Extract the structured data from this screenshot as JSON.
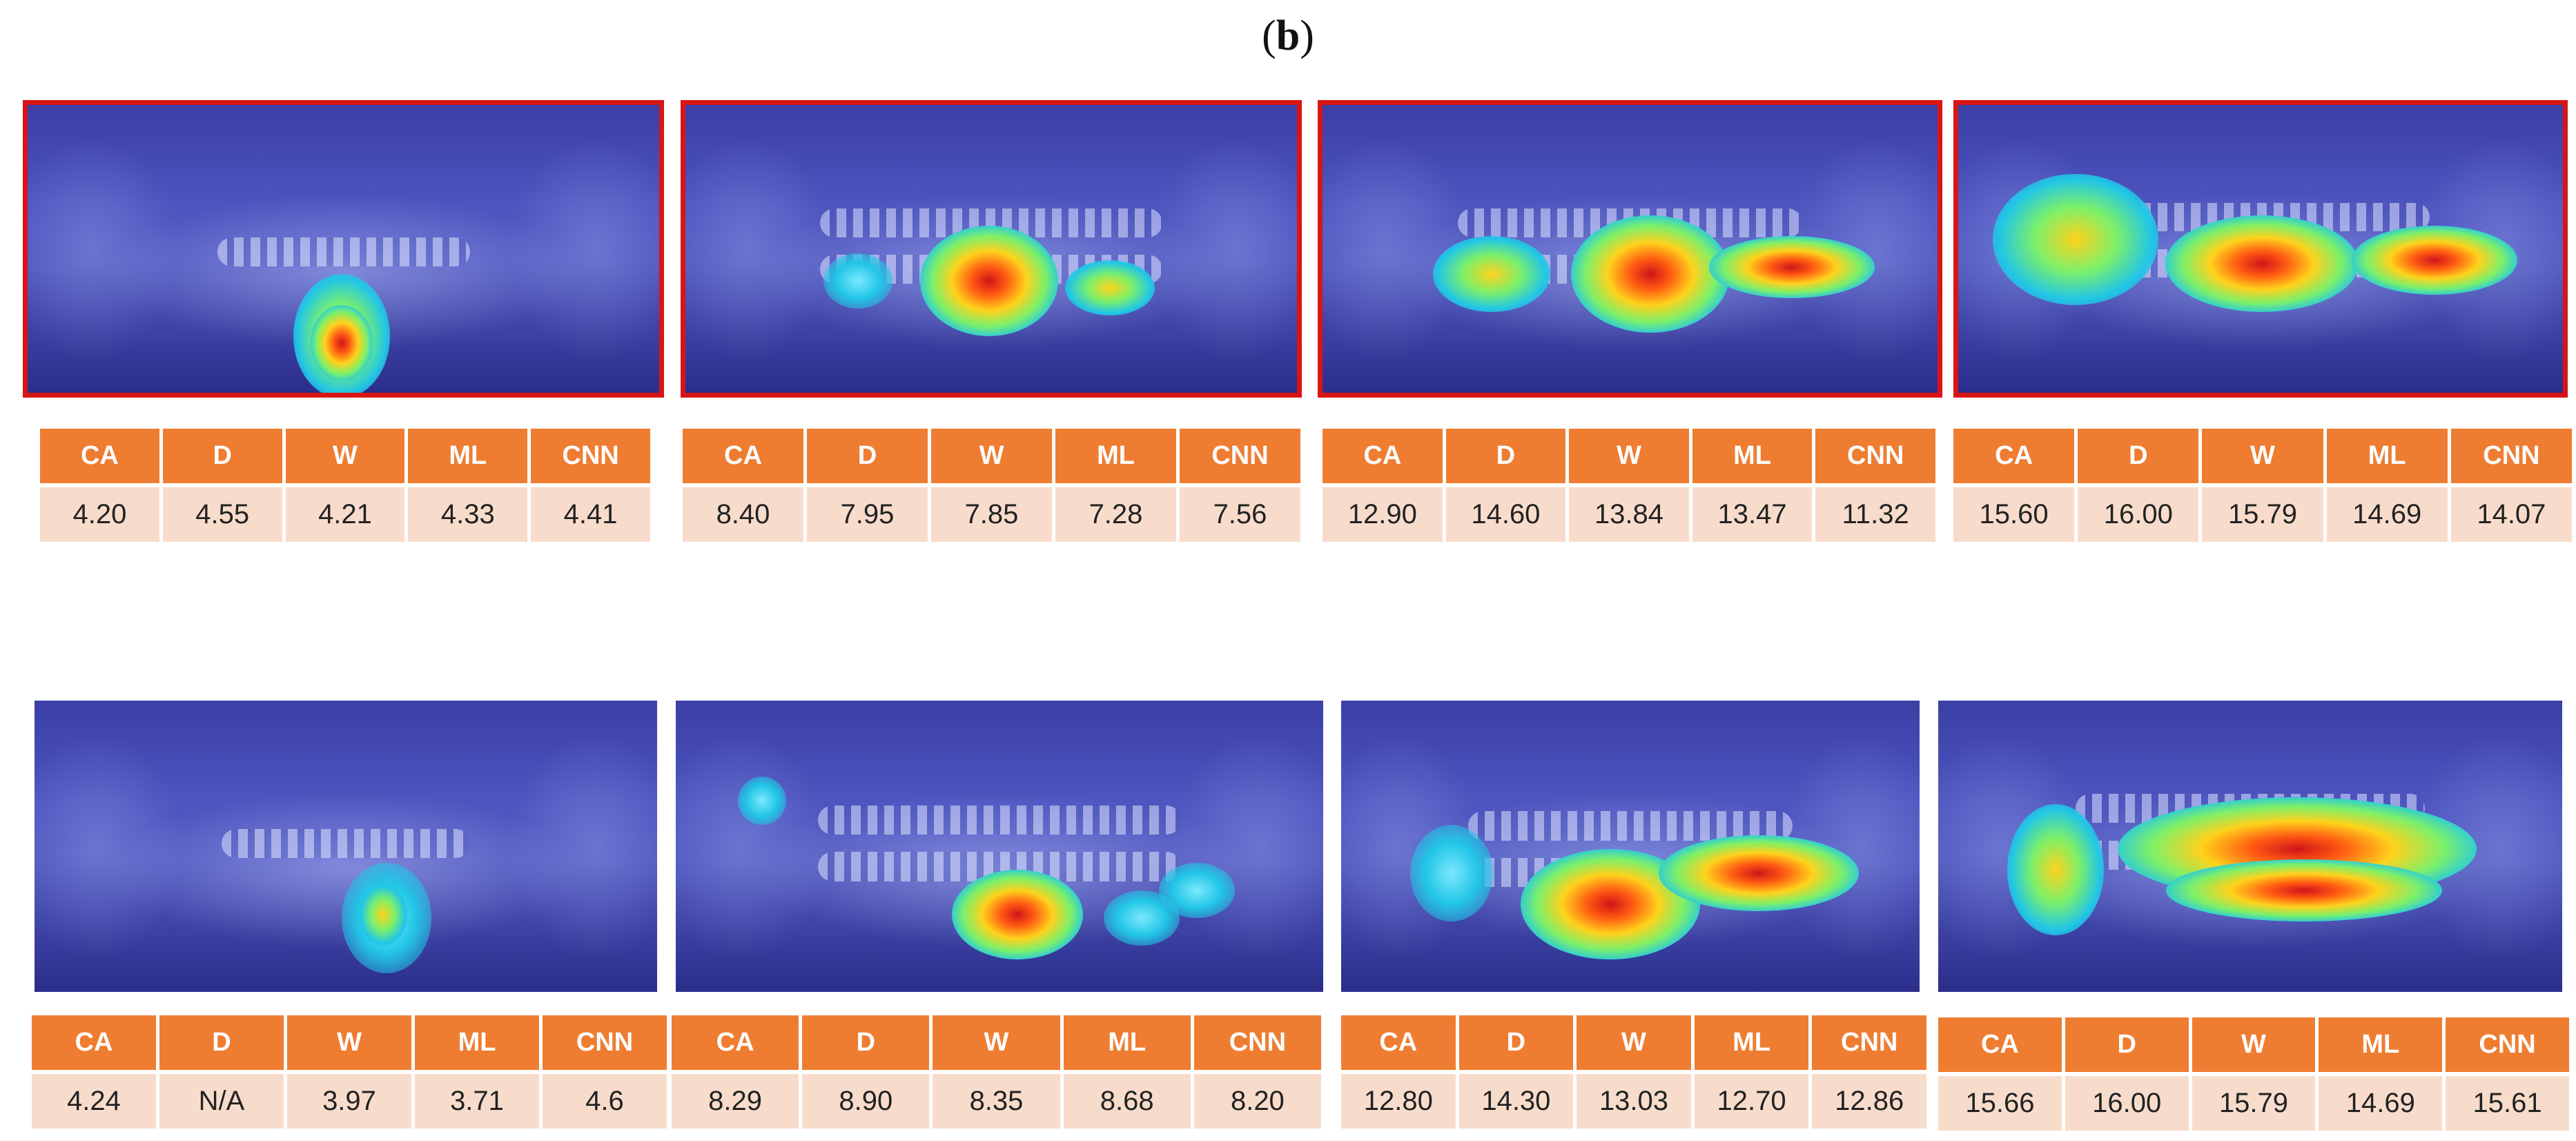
{
  "caption": {
    "open": "(",
    "letter": "b",
    "close": ")"
  },
  "headers": [
    "CA",
    "D",
    "W",
    "ML",
    "CNN"
  ],
  "colors": {
    "header_bg": "#ee7d31",
    "cell_bg": "#f8dccb",
    "highlight_border": "#d91414"
  },
  "rows": [
    {
      "panels": [
        {
          "highlight": true,
          "values": [
            "4.20",
            "4.55",
            "4.21",
            "4.33",
            "4.41"
          ]
        },
        {
          "highlight": true,
          "values": [
            "8.40",
            "7.95",
            "7.85",
            "7.28",
            "7.56"
          ]
        },
        {
          "highlight": true,
          "values": [
            "12.90",
            "14.60",
            "13.84",
            "13.47",
            "11.32"
          ]
        },
        {
          "highlight": true,
          "values": [
            "15.60",
            "16.00",
            "15.79",
            "14.69",
            "14.07"
          ]
        }
      ]
    },
    {
      "panels": [
        {
          "highlight": false,
          "values": [
            "4.24",
            "N/A",
            "3.97",
            "3.71",
            "4.6"
          ]
        },
        {
          "highlight": false,
          "values": [
            "8.29",
            "8.90",
            "8.35",
            "8.68",
            "8.20"
          ]
        },
        {
          "highlight": false,
          "values": [
            "12.80",
            "14.30",
            "13.03",
            "12.70",
            "12.86"
          ]
        },
        {
          "highlight": false,
          "values": [
            "15.66",
            "16.00",
            "15.79",
            "14.69",
            "15.61"
          ]
        }
      ]
    }
  ]
}
